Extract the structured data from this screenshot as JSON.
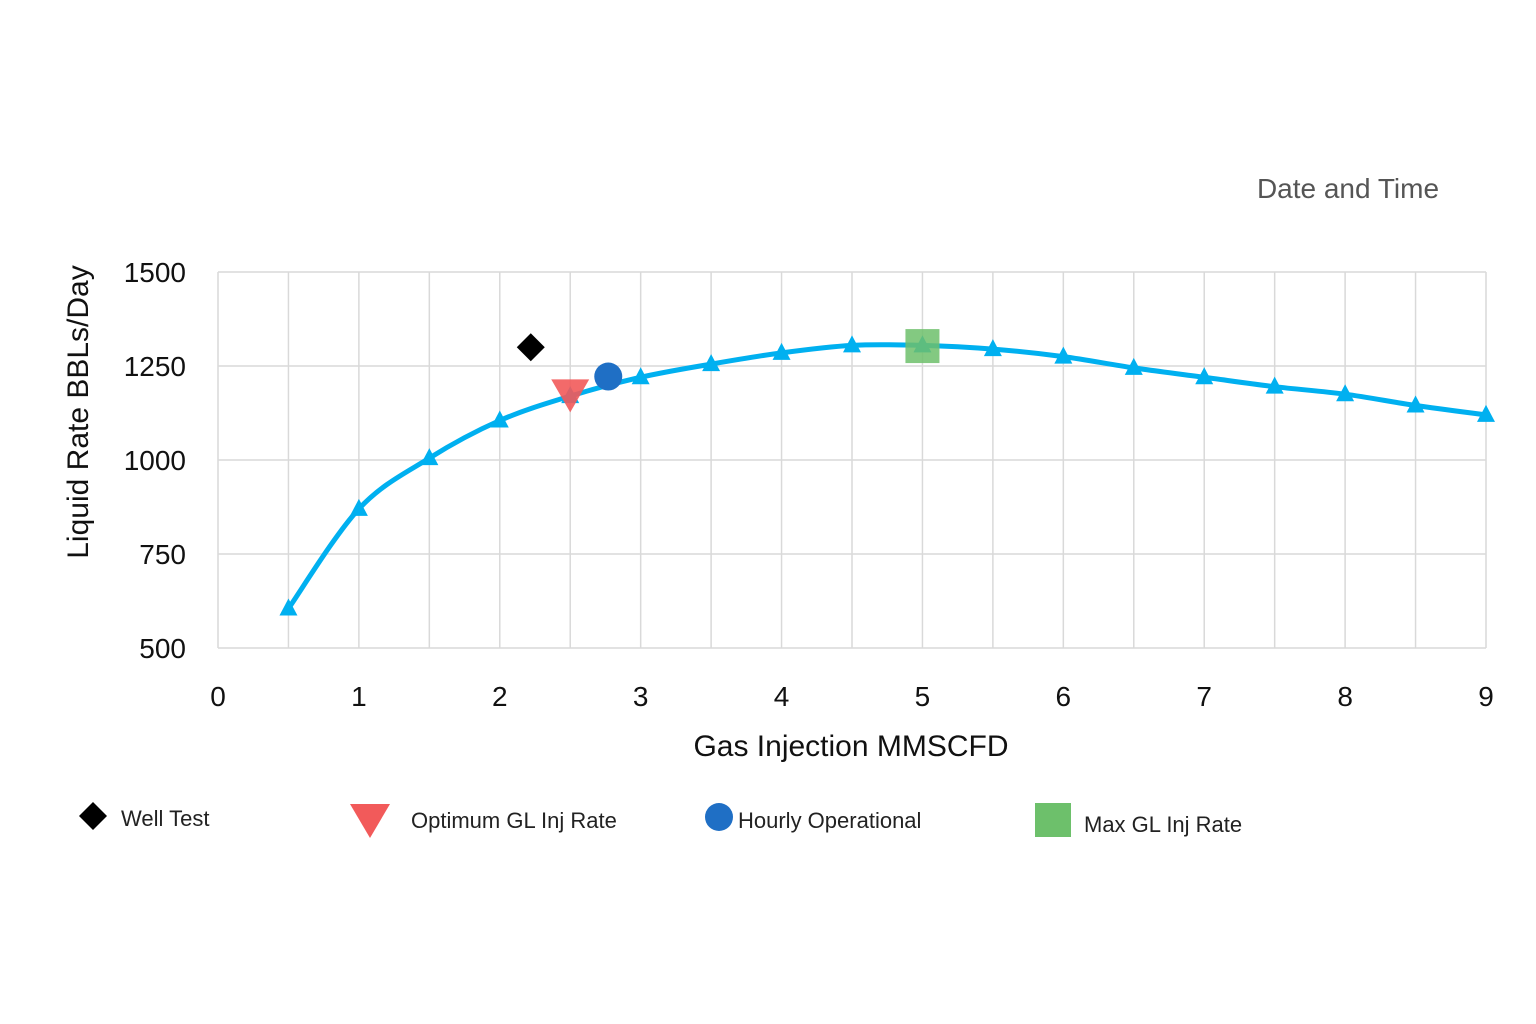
{
  "corner_note": "Date and Time",
  "colors": {
    "curve": "#00B0F0",
    "well_test": "#000000",
    "optimum": "#F25A5A",
    "hourly": "#1F6FC5",
    "max": "#6DC06B",
    "grid": "#D9D9D9"
  },
  "chart_data": {
    "type": "line",
    "xlabel": "Gas Injection MMSCFD",
    "ylabel": "Liquid Rate BBLs/Day",
    "xlim": [
      0,
      9
    ],
    "ylim": [
      500,
      1500
    ],
    "x_ticks": [
      "0",
      "1",
      "2",
      "3",
      "4",
      "5",
      "6",
      "7",
      "8",
      "9"
    ],
    "y_ticks": [
      "500",
      "750",
      "1000",
      "1250",
      "1500"
    ],
    "grid": true,
    "legend_position": "bottom",
    "series": [
      {
        "marker": "triangle",
        "x": [
          0.5,
          1,
          1.5,
          2,
          2.5,
          3,
          3.5,
          4,
          4.5,
          5,
          5.5,
          6,
          6.5,
          7,
          7.5,
          8,
          8.5,
          9
        ],
        "y": [
          605,
          870,
          1005,
          1105,
          1170,
          1220,
          1255,
          1285,
          1305,
          1305,
          1295,
          1275,
          1245,
          1220,
          1195,
          1175,
          1145,
          1120
        ]
      }
    ],
    "points": [
      {
        "name": "Well Test",
        "marker": "diamond",
        "x": 2.22,
        "y": 1300
      },
      {
        "name": "Optimum GL Inj Rate",
        "marker": "triangle-down",
        "x": 2.5,
        "y": 1180
      },
      {
        "name": "Hourly Operational",
        "marker": "circle",
        "x": 2.77,
        "y": 1222
      },
      {
        "name": "Max GL Inj Rate",
        "marker": "square",
        "x": 5,
        "y": 1303
      }
    ]
  }
}
